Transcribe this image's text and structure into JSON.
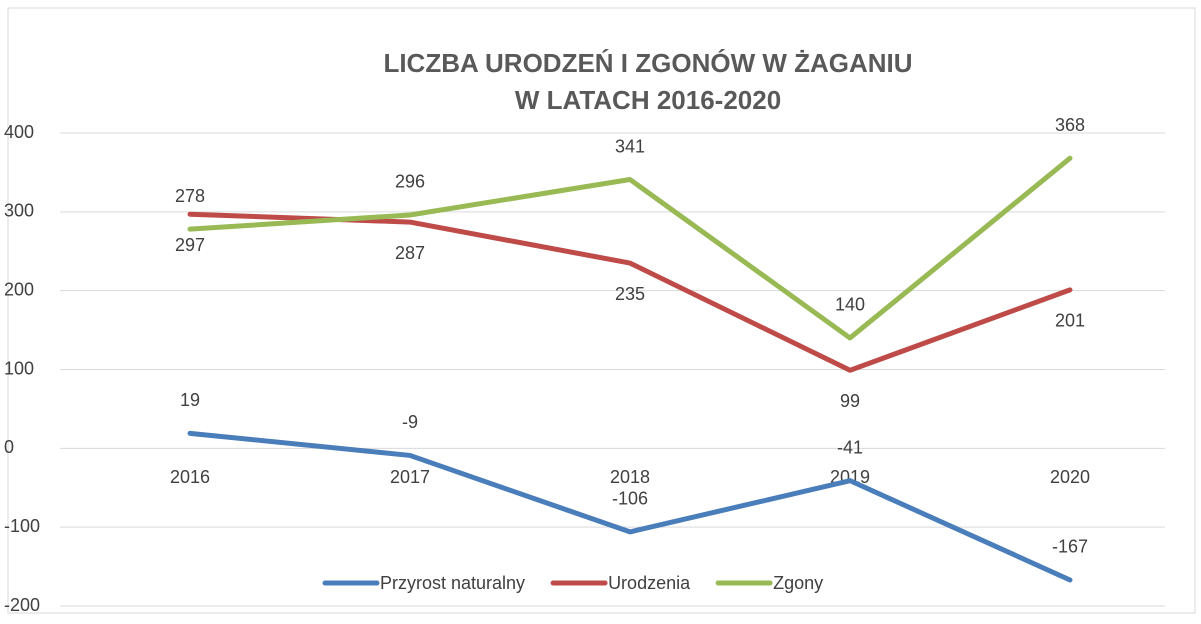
{
  "chart_data": {
    "type": "line",
    "title": [
      "LICZBA URODZEŃ I ZGONÓW W ŻAGANIU",
      "W LATACH 2016-2020"
    ],
    "categories": [
      "2016",
      "2017",
      "2018",
      "2019",
      "2020"
    ],
    "series": [
      {
        "name": "Przyrost naturalny",
        "color": "#4a7ebb",
        "values": [
          19,
          -9,
          -106,
          -41,
          -167
        ]
      },
      {
        "name": "Urodzenia",
        "color": "#be4b48",
        "values": [
          297,
          287,
          235,
          99,
          201
        ]
      },
      {
        "name": "Zgony",
        "color": "#98b954",
        "values": [
          278,
          296,
          341,
          140,
          368
        ]
      }
    ],
    "ylim": [
      -200,
      400
    ],
    "yticks": [
      -200,
      -100,
      0,
      100,
      200,
      300,
      400
    ],
    "grid": true,
    "legend": "bottom"
  }
}
